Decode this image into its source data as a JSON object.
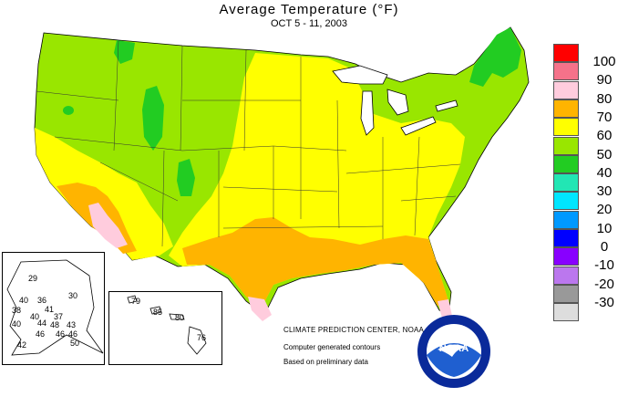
{
  "header": {
    "title": "Average Temperature (°F)",
    "subtitle": "OCT 5 - 11, 2003"
  },
  "legend": {
    "items": [
      {
        "label": "100",
        "color": "#ff0000"
      },
      {
        "label": "90",
        "color": "#f5728a"
      },
      {
        "label": "80",
        "color": "#ffccdd"
      },
      {
        "label": "70",
        "color": "#ffb400"
      },
      {
        "label": "60",
        "color": "#ffff00"
      },
      {
        "label": "50",
        "color": "#99e600"
      },
      {
        "label": "40",
        "color": "#22cc22"
      },
      {
        "label": "30",
        "color": "#22e6b4"
      },
      {
        "label": "20",
        "color": "#00e6ff"
      },
      {
        "label": "10",
        "color": "#0099ff"
      },
      {
        "label": "0",
        "color": "#0000ff"
      },
      {
        "label": "-10",
        "color": "#8800ff"
      },
      {
        "label": "-20",
        "color": "#bb77ee"
      },
      {
        "label": "-30",
        "color": "#999999"
      },
      {
        "label": "",
        "color": "#dddddd"
      }
    ]
  },
  "credits": {
    "org": "CLIMATE PREDICTION CENTER, NOAA",
    "line2": "Computer generated contours",
    "line3": "Based on preliminary data"
  },
  "logo": {
    "text": "NOAA"
  },
  "alaska": {
    "labels": [
      "29",
      "30",
      "40",
      "36",
      "41",
      "38",
      "40",
      "44",
      "37",
      "40",
      "46",
      "48",
      "43",
      "46",
      "46",
      "42",
      "50"
    ]
  },
  "hawaii": {
    "labels": [
      "79",
      "85",
      "80",
      "76"
    ]
  }
}
